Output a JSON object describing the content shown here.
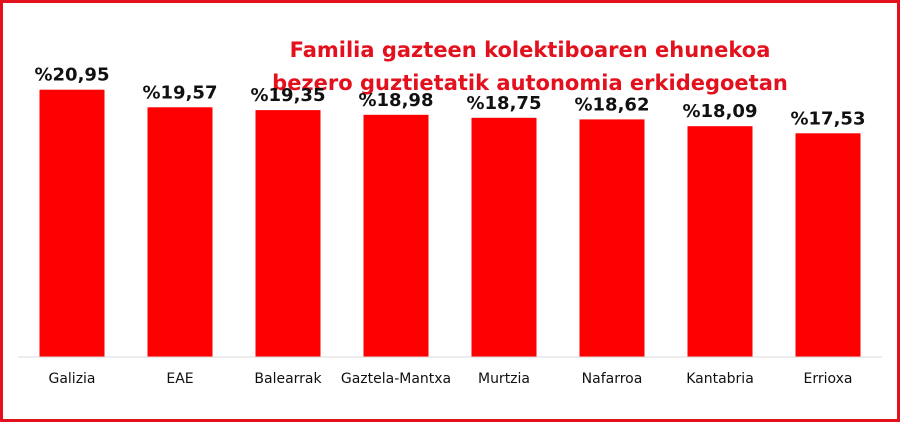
{
  "chart_data": {
    "type": "bar",
    "title_lines": [
      "Familia gazteen kolektiboaren ehunekoa",
      "bezero guztietatik autonomia erkidegoetan"
    ],
    "categories": [
      "Galizia",
      "EAE",
      "Balearrak",
      "Gaztela-Mantxa",
      "Murtzia",
      "Nafarroa",
      "Kantabria",
      "Errioxa"
    ],
    "values": [
      20.95,
      19.57,
      19.35,
      18.98,
      18.75,
      18.62,
      18.09,
      17.53
    ],
    "value_labels": [
      "%20,95",
      "%19,57",
      "%19,35",
      "%18,98",
      "%18,75",
      "%18,62",
      "%18,09",
      "%17,53"
    ],
    "xlabel": "",
    "ylabel": "",
    "grid": false,
    "legend": "none",
    "colors": {
      "bar": "#ff0000",
      "title": "#e3101d",
      "frame": "#e3101d",
      "baseline": "#d9d9d9",
      "text": "#111111"
    }
  }
}
